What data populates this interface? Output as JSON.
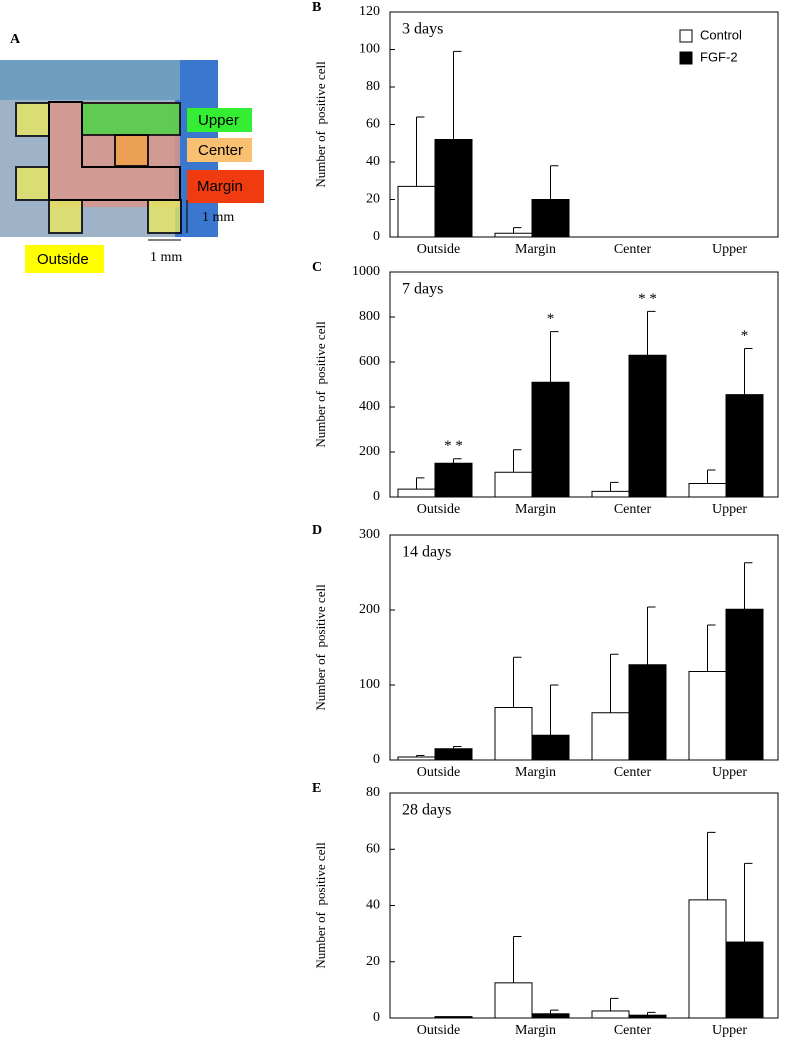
{
  "panel_a": {
    "letter": "A",
    "upper": "Upper",
    "center": "Center",
    "margin": "Margin",
    "outside": "Outside",
    "scale_vertical": "1 mm",
    "scale_horizontal": "1 mm"
  },
  "chart_data": [
    {
      "type": "bar",
      "panel": "B",
      "title": "3 days",
      "y_label": "Number of  positive cell",
      "legend": "upper right",
      "categories": [
        "Outside",
        "Margin",
        "Center",
        "Upper"
      ],
      "series": [
        {
          "name": "Control",
          "color": "#ffffff",
          "values": [
            27,
            2,
            0,
            0
          ],
          "errors": [
            37,
            3,
            null,
            null
          ]
        },
        {
          "name": "FGF-2",
          "color": "#000000",
          "values": [
            52,
            20,
            0,
            0
          ],
          "errors": [
            47,
            18,
            null,
            null
          ]
        }
      ],
      "ylim": [
        0,
        120
      ],
      "yticks": [
        0,
        20,
        40,
        60,
        80,
        100,
        120
      ]
    },
    {
      "type": "bar",
      "panel": "C",
      "title": "7 days",
      "y_label": "Number of  positive cell",
      "categories": [
        "Outside",
        "Margin",
        "Center",
        "Upper"
      ],
      "series": [
        {
          "name": "Control",
          "color": "#ffffff",
          "values": [
            35,
            110,
            25,
            60
          ],
          "errors": [
            50,
            100,
            40,
            60
          ]
        },
        {
          "name": "FGF-2",
          "color": "#000000",
          "values": [
            150,
            510,
            630,
            455
          ],
          "errors": [
            20,
            225,
            195,
            205
          ],
          "significance": [
            "* *",
            "*",
            "* *",
            "*"
          ]
        }
      ],
      "ylim": [
        0,
        1000
      ],
      "yticks": [
        0,
        200,
        400,
        600,
        800,
        1000
      ]
    },
    {
      "type": "bar",
      "panel": "D",
      "title": "14 days",
      "y_label": "Number of  positive cell",
      "categories": [
        "Outside",
        "Margin",
        "Center",
        "Upper"
      ],
      "series": [
        {
          "name": "Control",
          "color": "#ffffff",
          "values": [
            4,
            70,
            63,
            118
          ],
          "errors": [
            2,
            67,
            78,
            62
          ]
        },
        {
          "name": "FGF-2",
          "color": "#000000",
          "values": [
            15,
            33,
            127,
            201
          ],
          "errors": [
            3,
            67,
            77,
            62
          ]
        }
      ],
      "ylim": [
        0,
        300
      ],
      "yticks": [
        0,
        100,
        200,
        300
      ]
    },
    {
      "type": "bar",
      "panel": "E",
      "title": "28 days",
      "y_label": "Number of  positive cell",
      "categories": [
        "Outside",
        "Margin",
        "Center",
        "Upper"
      ],
      "series": [
        {
          "name": "Control",
          "color": "#ffffff",
          "values": [
            0,
            12.5,
            2.5,
            42
          ],
          "errors": [
            null,
            16.5,
            4.5,
            24
          ]
        },
        {
          "name": "FGF-2",
          "color": "#000000",
          "values": [
            0.5,
            1.5,
            1,
            27
          ],
          "errors": [
            null,
            1.3,
            1,
            28
          ]
        }
      ],
      "ylim": [
        0,
        80
      ],
      "yticks": [
        0,
        20,
        40,
        60,
        80
      ]
    }
  ]
}
